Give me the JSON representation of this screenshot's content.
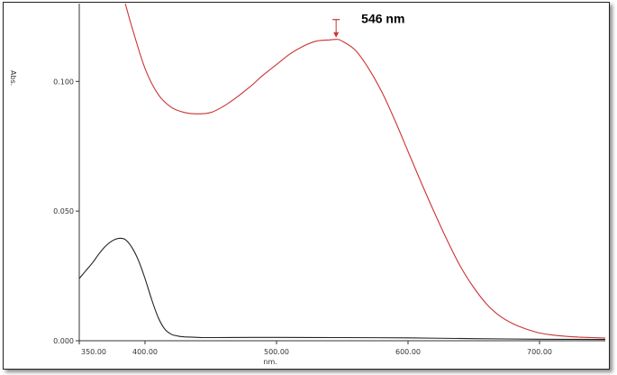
{
  "chart_data": {
    "type": "line",
    "xlabel": "nm.",
    "ylabel": "Abs.",
    "xlim": [
      350,
      750
    ],
    "ylim": [
      0,
      0.13
    ],
    "x_ticks": [
      350,
      400,
      500,
      600,
      700
    ],
    "x_tick_labels": [
      "350.00",
      "400.00",
      "500.00",
      "600.00",
      "700.00"
    ],
    "y_ticks": [
      0,
      0.05,
      0.1
    ],
    "y_tick_labels": [
      "0.000",
      "0.050",
      "0.100"
    ],
    "grid": false,
    "colors": {
      "red_series": "#cc3333",
      "black_series": "#222222"
    },
    "series": [
      {
        "x": [
          385,
          390,
          400,
          410,
          420,
          430,
          440,
          450,
          460,
          470,
          480,
          490,
          500,
          510,
          520,
          530,
          540,
          546,
          550,
          560,
          570,
          580,
          590,
          600,
          610,
          620,
          630,
          640,
          650,
          660,
          670,
          680,
          690,
          700,
          710,
          720,
          730,
          740,
          750
        ],
        "y": [
          0.131,
          0.121,
          0.105,
          0.095,
          0.09,
          0.088,
          0.0875,
          0.088,
          0.0905,
          0.094,
          0.098,
          0.1025,
          0.1065,
          0.1105,
          0.1135,
          0.1155,
          0.116,
          0.1162,
          0.1155,
          0.112,
          0.105,
          0.096,
          0.085,
          0.073,
          0.061,
          0.0495,
          0.0385,
          0.0285,
          0.0205,
          0.014,
          0.0095,
          0.0065,
          0.0045,
          0.003,
          0.0022,
          0.0017,
          0.0014,
          0.0012,
          0.001
        ]
      },
      {
        "x": [
          350,
          355,
          360,
          365,
          370,
          375,
          380,
          385,
          390,
          395,
          400,
          405,
          410,
          415,
          420,
          425,
          430,
          440,
          450,
          500,
          550,
          600,
          650,
          700,
          750
        ],
        "y": [
          0.024,
          0.027,
          0.03,
          0.0335,
          0.0365,
          0.0385,
          0.0395,
          0.039,
          0.036,
          0.031,
          0.024,
          0.016,
          0.009,
          0.0045,
          0.0025,
          0.0018,
          0.0015,
          0.0013,
          0.0012,
          0.0013,
          0.0012,
          0.0011,
          0.0008,
          0.0006,
          0.0005
        ]
      }
    ],
    "annotations": [
      {
        "text": "546 nm",
        "x": 546,
        "y": 0.1162
      }
    ]
  }
}
